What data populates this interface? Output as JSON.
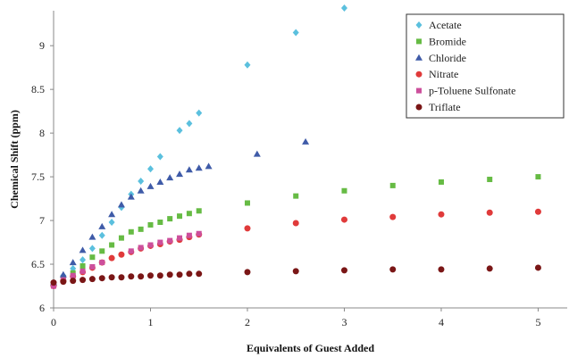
{
  "chart_data": {
    "type": "scatter",
    "title": "",
    "xlabel": "Equivalents of Guest Added",
    "ylabel": "Chemical Shift (ppm)",
    "xlim": [
      0,
      5.3
    ],
    "ylim": [
      6,
      9.4
    ],
    "xticks": [
      0,
      1,
      2,
      3,
      4,
      5
    ],
    "yticks": [
      6,
      6.5,
      7,
      7.5,
      8,
      8.5,
      9
    ],
    "xtick_labels": [
      "0",
      "1",
      "2",
      "3",
      "4",
      "5"
    ],
    "ytick_labels": [
      "6",
      "6.5",
      "7",
      "7.5",
      "8",
      "8.5",
      "9"
    ],
    "grid": false,
    "legend_position": "top-right",
    "series": [
      {
        "name": "Acetate",
        "color": "#5BC0DE",
        "marker": "diamond",
        "x": [
          0,
          0.1,
          0.2,
          0.3,
          0.4,
          0.5,
          0.6,
          0.7,
          0.8,
          0.9,
          1.0,
          1.1,
          1.3,
          1.4,
          1.5,
          2.0,
          2.5,
          3.0
        ],
        "y": [
          6.25,
          6.37,
          6.45,
          6.55,
          6.68,
          6.83,
          6.98,
          7.15,
          7.3,
          7.45,
          7.59,
          7.73,
          8.03,
          8.11,
          8.23,
          8.78,
          9.15,
          9.43
        ]
      },
      {
        "name": "Bromide",
        "color": "#66BB44",
        "marker": "square",
        "x": [
          0,
          0.1,
          0.2,
          0.3,
          0.4,
          0.5,
          0.6,
          0.7,
          0.8,
          0.9,
          1.0,
          1.1,
          1.2,
          1.3,
          1.4,
          1.5,
          2.0,
          2.5,
          3.0,
          3.5,
          4.0,
          4.5,
          5.0
        ],
        "y": [
          6.27,
          6.34,
          6.4,
          6.48,
          6.58,
          6.65,
          6.72,
          6.8,
          6.87,
          6.9,
          6.95,
          6.98,
          7.02,
          7.05,
          7.08,
          7.11,
          7.2,
          7.28,
          7.34,
          7.4,
          7.44,
          7.47,
          7.5
        ]
      },
      {
        "name": "Chloride",
        "color": "#3F5BA8",
        "marker": "triangle",
        "x": [
          0,
          0.1,
          0.2,
          0.3,
          0.4,
          0.5,
          0.6,
          0.7,
          0.8,
          0.9,
          1.0,
          1.1,
          1.2,
          1.3,
          1.4,
          1.5,
          1.6,
          2.1,
          2.6
        ],
        "y": [
          6.29,
          6.38,
          6.52,
          6.66,
          6.81,
          6.93,
          7.07,
          7.18,
          7.27,
          7.34,
          7.39,
          7.44,
          7.49,
          7.53,
          7.58,
          7.6,
          7.62,
          7.76,
          7.9
        ]
      },
      {
        "name": "Nitrate",
        "color": "#E03A3A",
        "marker": "circle",
        "x": [
          0,
          0.1,
          0.2,
          0.3,
          0.4,
          0.5,
          0.6,
          0.7,
          0.8,
          0.9,
          1.0,
          1.1,
          1.2,
          1.3,
          1.4,
          1.5,
          2.0,
          2.5,
          3.0,
          3.5,
          4.0,
          4.5,
          5.0
        ],
        "y": [
          6.25,
          6.31,
          6.36,
          6.41,
          6.46,
          6.52,
          6.57,
          6.61,
          6.64,
          6.68,
          6.71,
          6.73,
          6.76,
          6.78,
          6.81,
          6.84,
          6.91,
          6.97,
          7.01,
          7.04,
          7.07,
          7.09,
          7.1
        ]
      },
      {
        "name": "p-Toluene Sulfonate",
        "color": "#CC4F9C",
        "marker": "square",
        "x": [
          0,
          0.1,
          0.2,
          0.3,
          0.4,
          0.5,
          0.8,
          0.9,
          1.0,
          1.1,
          1.2,
          1.3,
          1.4,
          1.5
        ],
        "y": [
          6.25,
          6.32,
          6.37,
          6.42,
          6.47,
          6.52,
          6.65,
          6.69,
          6.72,
          6.75,
          6.77,
          6.8,
          6.83,
          6.85
        ]
      },
      {
        "name": "Triflate",
        "color": "#7A1616",
        "marker": "circle",
        "x": [
          0,
          0.1,
          0.2,
          0.3,
          0.4,
          0.5,
          0.6,
          0.7,
          0.8,
          0.9,
          1.0,
          1.1,
          1.2,
          1.3,
          1.4,
          1.5,
          2.0,
          2.5,
          3.0,
          3.5,
          4.0,
          4.5,
          5.0
        ],
        "y": [
          6.29,
          6.3,
          6.31,
          6.32,
          6.33,
          6.34,
          6.35,
          6.35,
          6.36,
          6.36,
          6.37,
          6.37,
          6.38,
          6.38,
          6.39,
          6.39,
          6.41,
          6.42,
          6.43,
          6.44,
          6.44,
          6.45,
          6.46
        ]
      }
    ]
  }
}
